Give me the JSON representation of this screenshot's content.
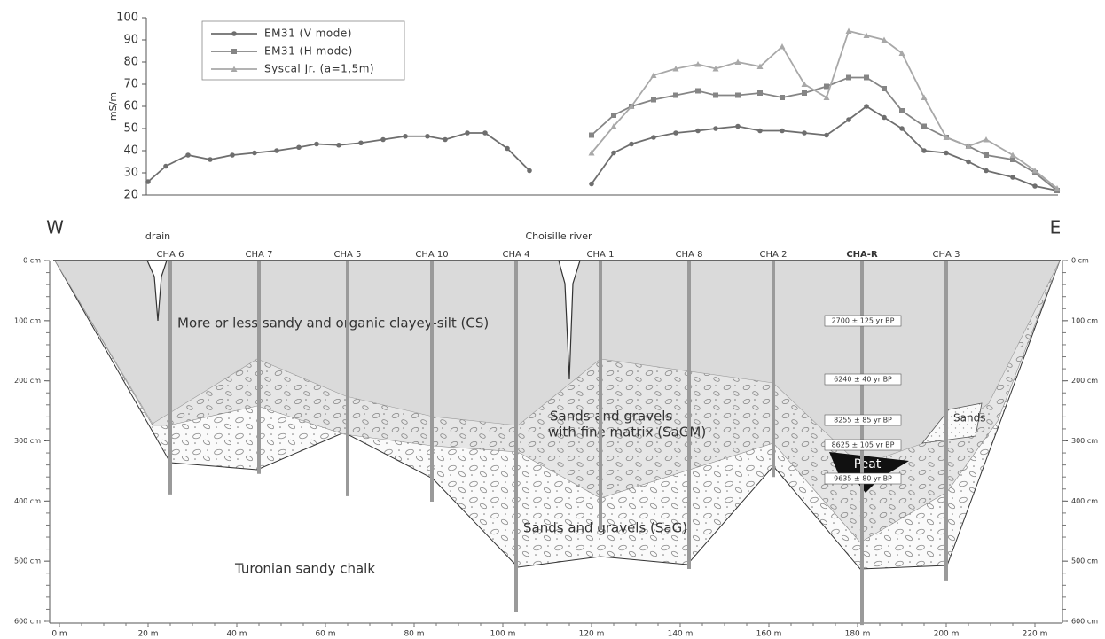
{
  "chart_data": {
    "type": "line",
    "ylabel": "mS/m",
    "xlim": [
      20,
      225
    ],
    "ylim": [
      20,
      100
    ],
    "yticks": [
      20,
      30,
      40,
      50,
      60,
      70,
      80,
      90,
      100
    ],
    "legend": "upper left",
    "series": [
      {
        "name": "EM31 (V mode)",
        "color": "#6e6e6e",
        "marker": "circle",
        "x": [
          20,
          24,
          29,
          34,
          39,
          44,
          49,
          54,
          58,
          63,
          68,
          73,
          78,
          83,
          87,
          92,
          96,
          101,
          106,
          113,
          120,
          125,
          129,
          134,
          139,
          144,
          148,
          153,
          158,
          163,
          168,
          173,
          178,
          182,
          186,
          190,
          195,
          200,
          205,
          209,
          215,
          220,
          225
        ],
        "values": [
          26,
          33,
          38,
          36,
          38,
          39,
          40,
          41.5,
          43,
          42.5,
          43.5,
          45,
          46.5,
          46.5,
          45,
          48,
          48,
          41,
          31,
          null,
          25,
          39,
          43,
          46,
          48,
          49,
          50,
          51,
          49,
          49,
          48,
          47,
          54,
          60,
          55,
          50,
          40,
          39,
          35,
          31,
          28,
          24,
          22
        ]
      },
      {
        "name": "EM31 (H mode)",
        "color": "#858585",
        "marker": "square",
        "x": [
          120,
          125,
          129,
          134,
          139,
          144,
          148,
          153,
          158,
          163,
          168,
          173,
          178,
          182,
          186,
          190,
          195,
          200,
          205,
          209,
          215,
          220,
          225
        ],
        "values": [
          47,
          56,
          60,
          63,
          65,
          67,
          65,
          65,
          66,
          64,
          66,
          69,
          73,
          73,
          68,
          58,
          51,
          46,
          42,
          38,
          36,
          30,
          22
        ]
      },
      {
        "name": "Syscal Jr. (a=1,5m)",
        "color": "#a8a8a8",
        "marker": "triangle",
        "x": [
          120,
          125,
          129,
          134,
          139,
          144,
          148,
          153,
          158,
          163,
          168,
          173,
          178,
          182,
          186,
          190,
          195,
          200,
          205,
          209,
          215,
          220,
          225
        ],
        "values": [
          39,
          51,
          60,
          74,
          77,
          79,
          77,
          80,
          78,
          87,
          70,
          64,
          94,
          92,
          90,
          84,
          64,
          46,
          42,
          45,
          38,
          31,
          23
        ]
      }
    ]
  },
  "section": {
    "west": "W",
    "east": "E",
    "drain": "drain",
    "river": "Choisille river",
    "xlim": [
      0,
      220
    ],
    "xticks": [
      {
        "value": 0,
        "label": "0 m"
      },
      {
        "value": 20,
        "label": "20 m"
      },
      {
        "value": 40,
        "label": "40 m"
      },
      {
        "value": 60,
        "label": "60 m"
      },
      {
        "value": 80,
        "label": "80 m"
      },
      {
        "value": 100,
        "label": "100 m"
      },
      {
        "value": 120,
        "label": "120 m"
      },
      {
        "value": 140,
        "label": "140 m"
      },
      {
        "value": 160,
        "label": "160 m"
      },
      {
        "value": 180,
        "label": "180 m"
      },
      {
        "value": 200,
        "label": "200 m"
      },
      {
        "value": 220,
        "label": "220 m"
      }
    ],
    "depthlim": [
      0,
      600
    ],
    "depthticks": [
      {
        "value": 0,
        "label": "0 cm"
      },
      {
        "value": 100,
        "label": "100 cm"
      },
      {
        "value": 200,
        "label": "200 cm"
      },
      {
        "value": 300,
        "label": "300 cm"
      },
      {
        "value": 400,
        "label": "400 cm"
      },
      {
        "value": 500,
        "label": "500 cm"
      },
      {
        "value": 600,
        "label": "600 cm"
      }
    ],
    "boreholes": [
      {
        "name": "CHA 6",
        "x": 25,
        "depth": 389
      },
      {
        "name": "CHA 7",
        "x": 45,
        "depth": 355
      },
      {
        "name": "CHA 5",
        "x": 65,
        "depth": 392
      },
      {
        "name": "CHA 10",
        "x": 84,
        "depth": 401
      },
      {
        "name": "CHA 4",
        "x": 103,
        "depth": 584
      },
      {
        "name": "CHA 1",
        "x": 122,
        "depth": 448
      },
      {
        "name": "CHA 8",
        "x": 142,
        "depth": 513
      },
      {
        "name": "CHA 2",
        "x": 161,
        "depth": 360
      },
      {
        "name": "CHA-R",
        "x": 181,
        "depth": 606
      },
      {
        "name": "CHA 3",
        "x": 200,
        "depth": 532
      }
    ],
    "layers": [
      "More or less sandy and organic clayey-silt (CS)",
      "Sands and gravels",
      "with fine matrix (SaGM)",
      "Sands and gravels (SaG)",
      "Turonian sandy chalk"
    ],
    "peat": "Peat",
    "sands": "Sands",
    "dates": [
      "2700 ± 125 yr BP",
      "6240 ± 40 yr BP",
      "8255 ± 85 yr BP",
      "8625 ± 105 yr BP",
      "9635 ± 80 yr BP"
    ]
  }
}
